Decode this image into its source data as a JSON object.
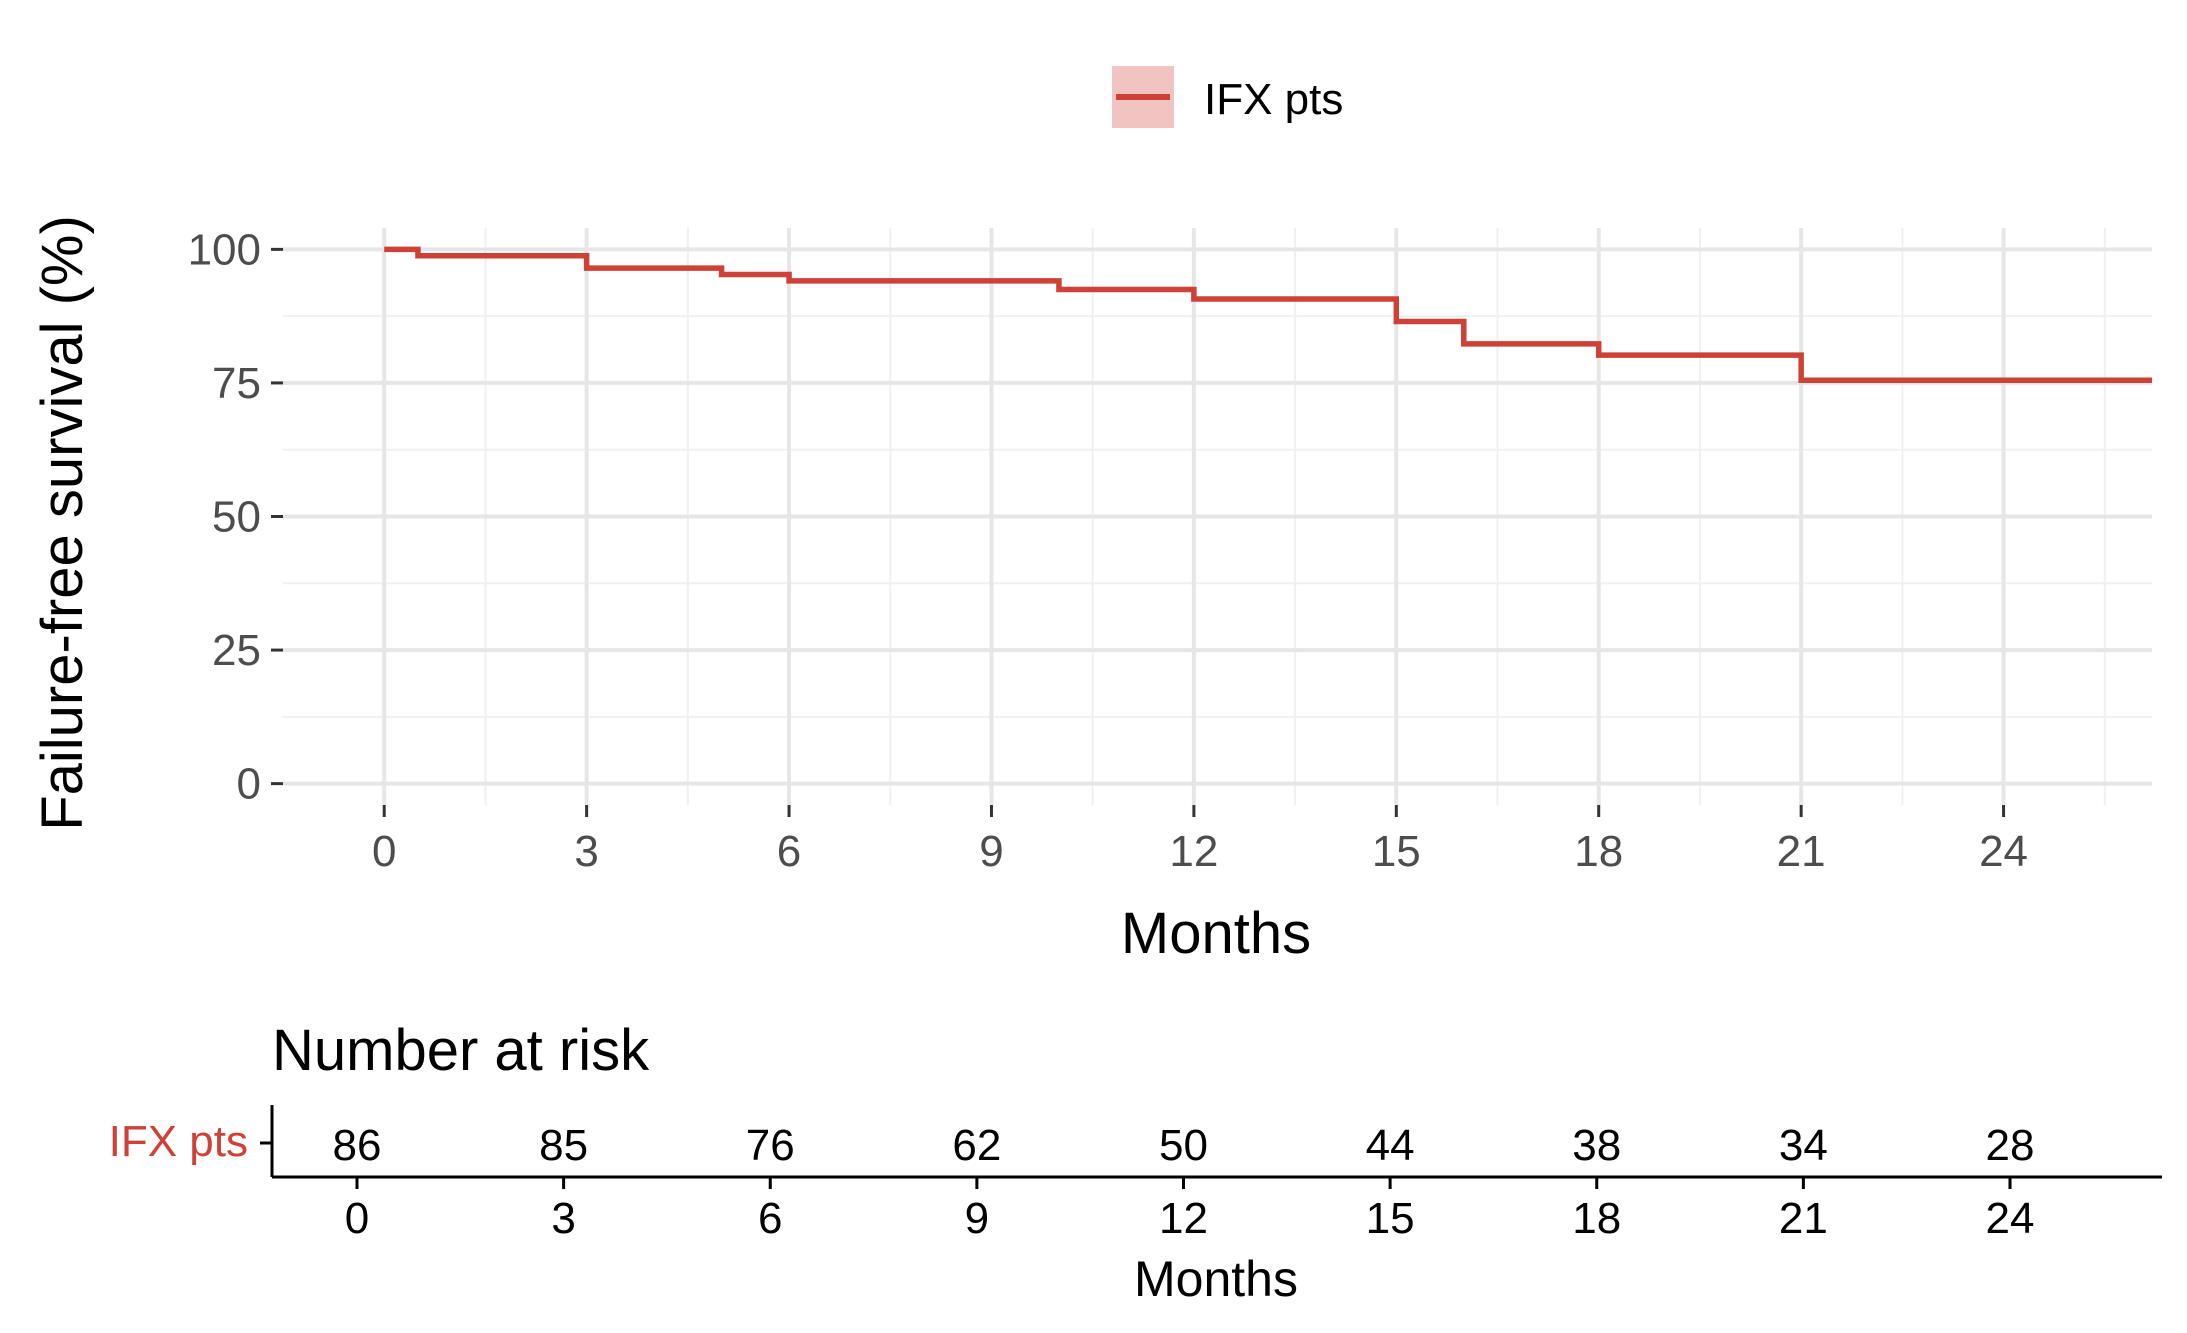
{
  "chart_data": [
    {
      "type": "line",
      "title": "",
      "xlabel": "Months",
      "ylabel": "Failure-free survival (%)",
      "xlim": [
        -1.5,
        26.2
      ],
      "ylim": [
        -4,
        104
      ],
      "x_ticks": [
        0,
        3,
        6,
        9,
        12,
        15,
        18,
        21,
        24
      ],
      "y_ticks": [
        0,
        25,
        50,
        75,
        100
      ],
      "grid": true,
      "legend_position": "top",
      "series": [
        {
          "name": "IFX pts",
          "color": "#cd4136",
          "step": true,
          "points": [
            [
              0,
              100
            ],
            [
              0.5,
              98.8
            ],
            [
              3,
              96.5
            ],
            [
              5,
              95.3
            ],
            [
              6,
              94.1
            ],
            [
              10,
              92.5
            ],
            [
              12,
              90.7
            ],
            [
              15,
              86.5
            ],
            [
              16,
              82.3
            ],
            [
              18,
              80.2
            ],
            [
              21,
              75.5
            ],
            [
              26.2,
              75.5
            ]
          ]
        }
      ]
    },
    {
      "type": "table",
      "title": "Number at risk",
      "xlabel": "Months",
      "row_label": "IFX pts",
      "row_label_color": "#cd4136",
      "x_ticks": [
        0,
        3,
        6,
        9,
        12,
        15,
        18,
        21,
        24
      ],
      "values": [
        86,
        85,
        76,
        62,
        50,
        44,
        38,
        34,
        28
      ]
    }
  ],
  "legend": {
    "label": "IFX pts",
    "line_color": "#cd4136",
    "fill_color": "#f2c4c1"
  }
}
